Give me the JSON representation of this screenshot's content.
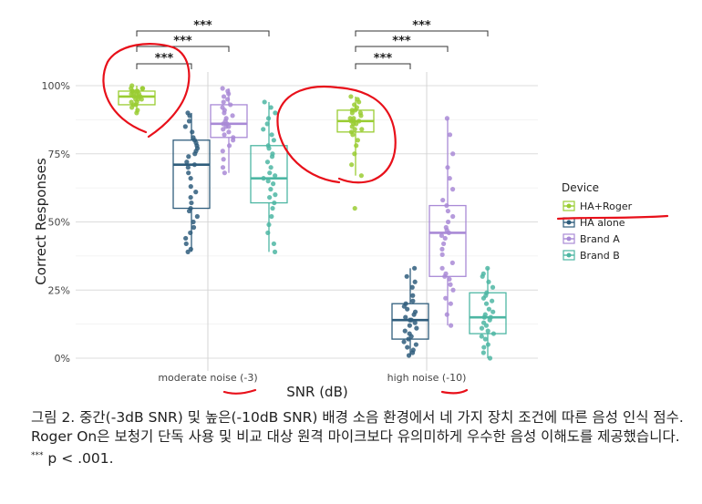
{
  "chart_data": {
    "type": "boxplot",
    "xlabel": "SNR (dB)",
    "ylabel": "Correct Responses",
    "ylim": [
      0,
      100
    ],
    "y_ticks": [
      "0%",
      "25%",
      "50%",
      "75%",
      "100%"
    ],
    "y_tick_values": [
      0,
      25,
      50,
      75,
      100
    ],
    "grid": true,
    "legend_title": "Device",
    "legend_position": "right",
    "categories": [
      "moderate noise (-3)",
      "high noise (-10)"
    ],
    "significance_label": "***",
    "series": [
      {
        "name": "HA+Roger",
        "color": "#9ACD32",
        "boxes": [
          {
            "min": 90,
            "q1": 93,
            "median": 96,
            "q3": 98,
            "max": 100,
            "points": [
              90,
              91,
              92,
              93,
              93,
              94,
              94,
              95,
              95,
              95,
              96,
              96,
              96,
              97,
              97,
              97,
              97,
              98,
              98,
              98,
              98,
              99,
              99,
              99,
              100
            ]
          },
          {
            "min": 67,
            "q1": 83,
            "median": 87,
            "q3": 91,
            "max": 96,
            "points": [
              55,
              67,
              71,
              75,
              78,
              80,
              82,
              83,
              84,
              84,
              85,
              86,
              86,
              87,
              87,
              87,
              88,
              88,
              89,
              90,
              90,
              91,
              91,
              92,
              93,
              94,
              95,
              96
            ]
          }
        ]
      },
      {
        "name": "HA alone",
        "color": "#2F5D7C",
        "boxes": [
          {
            "min": 39,
            "q1": 55,
            "median": 71,
            "q3": 80,
            "max": 90,
            "points": [
              39,
              40,
              42,
              44,
              46,
              48,
              50,
              52,
              54,
              55,
              57,
              59,
              61,
              63,
              66,
              68,
              70,
              71,
              72,
              74,
              75,
              76,
              77,
              78,
              79,
              80,
              81,
              83,
              85,
              87,
              89,
              90
            ]
          },
          {
            "min": 1,
            "q1": 7,
            "median": 14,
            "q3": 20,
            "max": 33,
            "points": [
              1,
              2,
              3,
              4,
              5,
              6,
              7,
              8,
              9,
              10,
              11,
              12,
              13,
              14,
              14,
              15,
              16,
              17,
              18,
              19,
              20,
              21,
              23,
              26,
              28,
              30,
              33
            ]
          }
        ]
      },
      {
        "name": "Brand A",
        "color": "#A98AD6",
        "boxes": [
          {
            "min": 68,
            "q1": 81,
            "median": 86,
            "q3": 93,
            "max": 99,
            "points": [
              68,
              70,
              73,
              76,
              78,
              80,
              81,
              82,
              83,
              84,
              85,
              85,
              86,
              86,
              87,
              88,
              89,
              90,
              91,
              92,
              93,
              94,
              95,
              96,
              97,
              98,
              99
            ]
          },
          {
            "min": 12,
            "q1": 30,
            "median": 46,
            "q3": 56,
            "max": 88,
            "points": [
              12,
              16,
              20,
              22,
              25,
              27,
              29,
              30,
              31,
              33,
              35,
              38,
              40,
              42,
              44,
              45,
              46,
              47,
              48,
              50,
              52,
              54,
              56,
              58,
              62,
              66,
              70,
              75,
              82,
              88
            ]
          }
        ]
      },
      {
        "name": "Brand B",
        "color": "#4DB6A3",
        "boxes": [
          {
            "min": 39,
            "q1": 57,
            "median": 66,
            "q3": 78,
            "max": 94,
            "points": [
              39,
              42,
              46,
              49,
              52,
              55,
              57,
              59,
              60,
              62,
              64,
              65,
              66,
              67,
              68,
              70,
              72,
              74,
              75,
              77,
              78,
              80,
              82,
              84,
              86,
              88,
              90,
              92,
              94
            ]
          },
          {
            "min": 0,
            "q1": 9,
            "median": 15,
            "q3": 24,
            "max": 33,
            "points": [
              0,
              2,
              4,
              5,
              7,
              8,
              9,
              10,
              11,
              12,
              13,
              14,
              15,
              15,
              16,
              17,
              18,
              20,
              21,
              22,
              23,
              24,
              26,
              28,
              30,
              31,
              33
            ]
          }
        ]
      }
    ],
    "annotation_colors": {
      "hand_drawn": "#E8101A"
    }
  },
  "caption": {
    "text": "그림 2. 중간(-3dB SNR) 및 높은(-10dB SNR) 배경 소음 환경에서 네 가지 장치 조건에 따른 음성 인식 점수. Roger On은 보청기 단독 사용 및 비교 대상 원격 마이크보다 유의미하게 우수한 음성 이해도를 제공했습니다. ",
    "sig_marker": "***",
    "p_text": " p < .001."
  }
}
